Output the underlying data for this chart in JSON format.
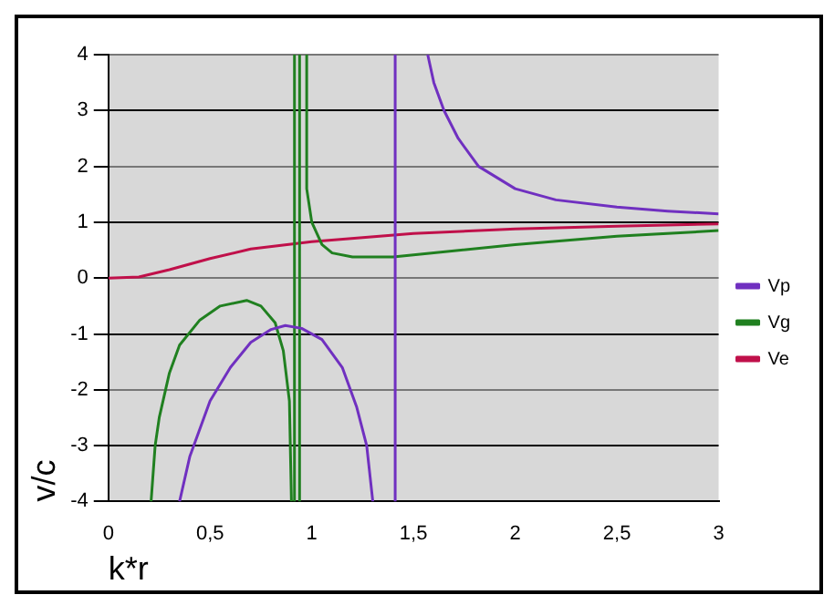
{
  "chart_data": {
    "type": "line",
    "xlabel": "k*r",
    "ylabel": "v/c",
    "xlim": [
      0,
      3
    ],
    "ylim": [
      -4,
      4
    ],
    "xticks": [
      0,
      {
        "value": 0.5,
        "label": "0,5"
      },
      1,
      {
        "value": 1.5,
        "label": "1,5"
      },
      2,
      {
        "value": 2.5,
        "label": "2,5"
      },
      3
    ],
    "yticks": [
      -4,
      -3,
      -2,
      -1,
      0,
      1,
      2,
      3,
      4
    ],
    "grid": "y",
    "legend": "right",
    "marker": "none",
    "line_style": "solid",
    "series": [
      {
        "name": "Vp",
        "color": "#7030c0",
        "x": [
          0.35,
          0.4,
          0.5,
          0.6,
          0.7,
          0.8,
          0.87,
          0.95,
          1.05,
          1.15,
          1.22,
          1.27,
          1.3,
          1.35,
          1.41,
          1.41,
          1.5,
          1.57,
          1.6,
          1.65,
          1.72,
          1.82,
          2,
          2.2,
          2.5,
          2.75,
          3
        ],
        "values": [
          -4,
          -3.2,
          -2.2,
          -1.6,
          -1.15,
          -0.92,
          -0.85,
          -0.9,
          -1.1,
          -1.6,
          -2.3,
          -3,
          -4,
          null,
          -4,
          4,
          null,
          4,
          3.5,
          3,
          2.5,
          2,
          1.6,
          1.4,
          1.27,
          1.2,
          1.15
        ]
      },
      {
        "name": "Vg",
        "color": "#208020",
        "x": [
          0.21,
          0.23,
          0.25,
          0.3,
          0.35,
          0.45,
          0.55,
          0.68,
          0.75,
          0.82,
          0.86,
          0.89,
          0.9,
          0.905,
          0.915,
          0.915,
          0.93,
          0.94,
          0.94,
          0.96,
          0.975,
          0.975,
          1.0,
          1.05,
          1.1,
          1.2,
          1.4,
          1.6,
          2,
          2.5,
          3
        ],
        "values": [
          -4,
          -3,
          -2.5,
          -1.7,
          -1.2,
          -0.75,
          -0.5,
          -0.4,
          -0.5,
          -0.8,
          -1.3,
          -2.2,
          -4,
          null,
          -4,
          4,
          null,
          -4,
          4,
          null,
          4,
          1.6,
          1.0,
          0.6,
          0.45,
          0.38,
          0.38,
          0.45,
          0.6,
          0.75,
          0.85
        ]
      },
      {
        "name": "Ve",
        "color": "#c0104a",
        "x": [
          0,
          0.15,
          0.3,
          0.5,
          0.7,
          1.0,
          1.5,
          2,
          2.5,
          3
        ],
        "values": [
          0,
          0.02,
          0.15,
          0.35,
          0.52,
          0.65,
          0.8,
          0.88,
          0.93,
          0.97
        ]
      }
    ]
  }
}
